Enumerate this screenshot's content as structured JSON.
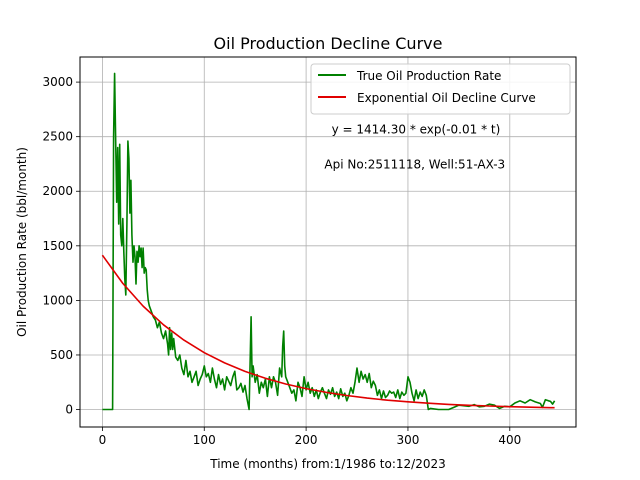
{
  "chart_data": {
    "type": "line",
    "title": "Oil Production Decline Curve",
    "xlabel": "Time (months) from:1/1986 to:12/2023",
    "ylabel": "Oil Production Rate (bbl/month)",
    "xlim": [
      -22,
      465
    ],
    "ylim": [
      -160,
      3230
    ],
    "x_ticks": [
      0,
      100,
      200,
      300,
      400
    ],
    "y_ticks": [
      0,
      500,
      1000,
      1500,
      2000,
      2500,
      3000
    ],
    "grid": true,
    "legend_position": "top-right",
    "annotations": [
      {
        "text": "y = 1414.30 * exp(-0.01 * t)",
        "x": 225,
        "y": 2530
      },
      {
        "text": "Api No:2511118, Well:51-AX-3",
        "x": 218,
        "y": 2210
      }
    ],
    "series": [
      {
        "name": "True Oil Production Rate",
        "color": "#008000",
        "points": [
          [
            0,
            0
          ],
          [
            5,
            0
          ],
          [
            10,
            0
          ],
          [
            11,
            2500
          ],
          [
            12,
            3080
          ],
          [
            13,
            2500
          ],
          [
            14,
            1900
          ],
          [
            15,
            2400
          ],
          [
            16,
            1700
          ],
          [
            17,
            2430
          ],
          [
            18,
            1600
          ],
          [
            19,
            1500
          ],
          [
            20,
            1750
          ],
          [
            21,
            1450
          ],
          [
            22,
            1200
          ],
          [
            23,
            1050
          ],
          [
            24,
            1700
          ],
          [
            25,
            2460
          ],
          [
            26,
            2300
          ],
          [
            27,
            1800
          ],
          [
            28,
            2100
          ],
          [
            29,
            1600
          ],
          [
            30,
            1350
          ],
          [
            31,
            1500
          ],
          [
            32,
            1400
          ],
          [
            33,
            1150
          ],
          [
            34,
            1450
          ],
          [
            35,
            1350
          ],
          [
            36,
            1500
          ],
          [
            37,
            1400
          ],
          [
            38,
            1480
          ],
          [
            39,
            1300
          ],
          [
            40,
            1480
          ],
          [
            41,
            1250
          ],
          [
            42,
            1300
          ],
          [
            43,
            1280
          ],
          [
            44,
            1100
          ],
          [
            45,
            1000
          ],
          [
            46,
            950
          ],
          [
            48,
            900
          ],
          [
            50,
            850
          ],
          [
            52,
            820
          ],
          [
            54,
            750
          ],
          [
            56,
            800
          ],
          [
            58,
            700
          ],
          [
            60,
            650
          ],
          [
            62,
            720
          ],
          [
            64,
            600
          ],
          [
            65,
            500
          ],
          [
            66,
            750
          ],
          [
            67,
            550
          ],
          [
            68,
            700
          ],
          [
            69,
            550
          ],
          [
            70,
            650
          ],
          [
            72,
            480
          ],
          [
            74,
            450
          ],
          [
            76,
            500
          ],
          [
            78,
            380
          ],
          [
            80,
            320
          ],
          [
            82,
            450
          ],
          [
            84,
            300
          ],
          [
            86,
            350
          ],
          [
            88,
            250
          ],
          [
            90,
            300
          ],
          [
            92,
            350
          ],
          [
            94,
            220
          ],
          [
            96,
            280
          ],
          [
            98,
            320
          ],
          [
            100,
            400
          ],
          [
            102,
            300
          ],
          [
            104,
            330
          ],
          [
            106,
            250
          ],
          [
            108,
            380
          ],
          [
            110,
            280
          ],
          [
            112,
            200
          ],
          [
            114,
            320
          ],
          [
            116,
            230
          ],
          [
            118,
            280
          ],
          [
            120,
            180
          ],
          [
            122,
            300
          ],
          [
            124,
            260
          ],
          [
            126,
            220
          ],
          [
            128,
            300
          ],
          [
            130,
            350
          ],
          [
            132,
            180
          ],
          [
            134,
            200
          ],
          [
            136,
            240
          ],
          [
            138,
            160
          ],
          [
            140,
            220
          ],
          [
            142,
            100
          ],
          [
            144,
            0
          ],
          [
            146,
            850
          ],
          [
            147,
            300
          ],
          [
            148,
            400
          ],
          [
            150,
            250
          ],
          [
            152,
            320
          ],
          [
            154,
            150
          ],
          [
            156,
            250
          ],
          [
            158,
            200
          ],
          [
            160,
            280
          ],
          [
            162,
            120
          ],
          [
            164,
            300
          ],
          [
            166,
            200
          ],
          [
            168,
            300
          ],
          [
            170,
            250
          ],
          [
            172,
            130
          ],
          [
            174,
            380
          ],
          [
            176,
            300
          ],
          [
            177,
            580
          ],
          [
            178,
            720
          ],
          [
            179,
            400
          ],
          [
            180,
            300
          ],
          [
            182,
            250
          ],
          [
            184,
            200
          ],
          [
            186,
            150
          ],
          [
            188,
            180
          ],
          [
            190,
            80
          ],
          [
            192,
            250
          ],
          [
            194,
            200
          ],
          [
            196,
            120
          ],
          [
            198,
            300
          ],
          [
            200,
            180
          ],
          [
            202,
            250
          ],
          [
            204,
            150
          ],
          [
            206,
            200
          ],
          [
            208,
            120
          ],
          [
            210,
            180
          ],
          [
            212,
            100
          ],
          [
            214,
            160
          ],
          [
            216,
            200
          ],
          [
            218,
            150
          ],
          [
            220,
            100
          ],
          [
            222,
            180
          ],
          [
            224,
            140
          ],
          [
            226,
            200
          ],
          [
            228,
            120
          ],
          [
            230,
            160
          ],
          [
            232,
            100
          ],
          [
            234,
            190
          ],
          [
            236,
            120
          ],
          [
            238,
            150
          ],
          [
            240,
            80
          ],
          [
            242,
            130
          ],
          [
            244,
            200
          ],
          [
            246,
            150
          ],
          [
            248,
            250
          ],
          [
            250,
            380
          ],
          [
            252,
            250
          ],
          [
            254,
            350
          ],
          [
            256,
            280
          ],
          [
            258,
            320
          ],
          [
            260,
            250
          ],
          [
            262,
            330
          ],
          [
            264,
            200
          ],
          [
            266,
            260
          ],
          [
            268,
            220
          ],
          [
            270,
            130
          ],
          [
            272,
            180
          ],
          [
            274,
            100
          ],
          [
            276,
            170
          ],
          [
            278,
            110
          ],
          [
            280,
            130
          ],
          [
            282,
            170
          ],
          [
            284,
            150
          ],
          [
            286,
            160
          ],
          [
            288,
            110
          ],
          [
            290,
            180
          ],
          [
            292,
            100
          ],
          [
            294,
            160
          ],
          [
            296,
            130
          ],
          [
            298,
            150
          ],
          [
            300,
            300
          ],
          [
            302,
            250
          ],
          [
            304,
            150
          ],
          [
            306,
            80
          ],
          [
            308,
            180
          ],
          [
            310,
            100
          ],
          [
            312,
            160
          ],
          [
            314,
            120
          ],
          [
            316,
            180
          ],
          [
            318,
            130
          ],
          [
            320,
            0
          ],
          [
            322,
            10
          ],
          [
            330,
            0
          ],
          [
            340,
            0
          ],
          [
            345,
            20
          ],
          [
            350,
            40
          ],
          [
            360,
            30
          ],
          [
            365,
            45
          ],
          [
            370,
            25
          ],
          [
            375,
            30
          ],
          [
            380,
            50
          ],
          [
            385,
            40
          ],
          [
            390,
            10
          ],
          [
            395,
            30
          ],
          [
            400,
            25
          ],
          [
            405,
            60
          ],
          [
            410,
            80
          ],
          [
            415,
            60
          ],
          [
            420,
            90
          ],
          [
            425,
            70
          ],
          [
            430,
            55
          ],
          [
            432,
            20
          ],
          [
            435,
            90
          ],
          [
            438,
            80
          ],
          [
            440,
            75
          ],
          [
            442,
            50
          ],
          [
            444,
            80
          ]
        ]
      },
      {
        "name": "Exponential Oil Decline Curve",
        "color": "#e00000",
        "points": [
          [
            0,
            1414
          ],
          [
            20,
            1156
          ],
          [
            40,
            948
          ],
          [
            60,
            776
          ],
          [
            80,
            636
          ],
          [
            100,
            521
          ],
          [
            120,
            427
          ],
          [
            140,
            349
          ],
          [
            160,
            286
          ],
          [
            180,
            234
          ],
          [
            200,
            192
          ],
          [
            220,
            157
          ],
          [
            240,
            129
          ],
          [
            260,
            105
          ],
          [
            280,
            86
          ],
          [
            300,
            71
          ],
          [
            320,
            58
          ],
          [
            340,
            47
          ],
          [
            360,
            39
          ],
          [
            380,
            32
          ],
          [
            400,
            26
          ],
          [
            420,
            21
          ],
          [
            440,
            17
          ],
          [
            444,
            17
          ]
        ]
      }
    ]
  }
}
